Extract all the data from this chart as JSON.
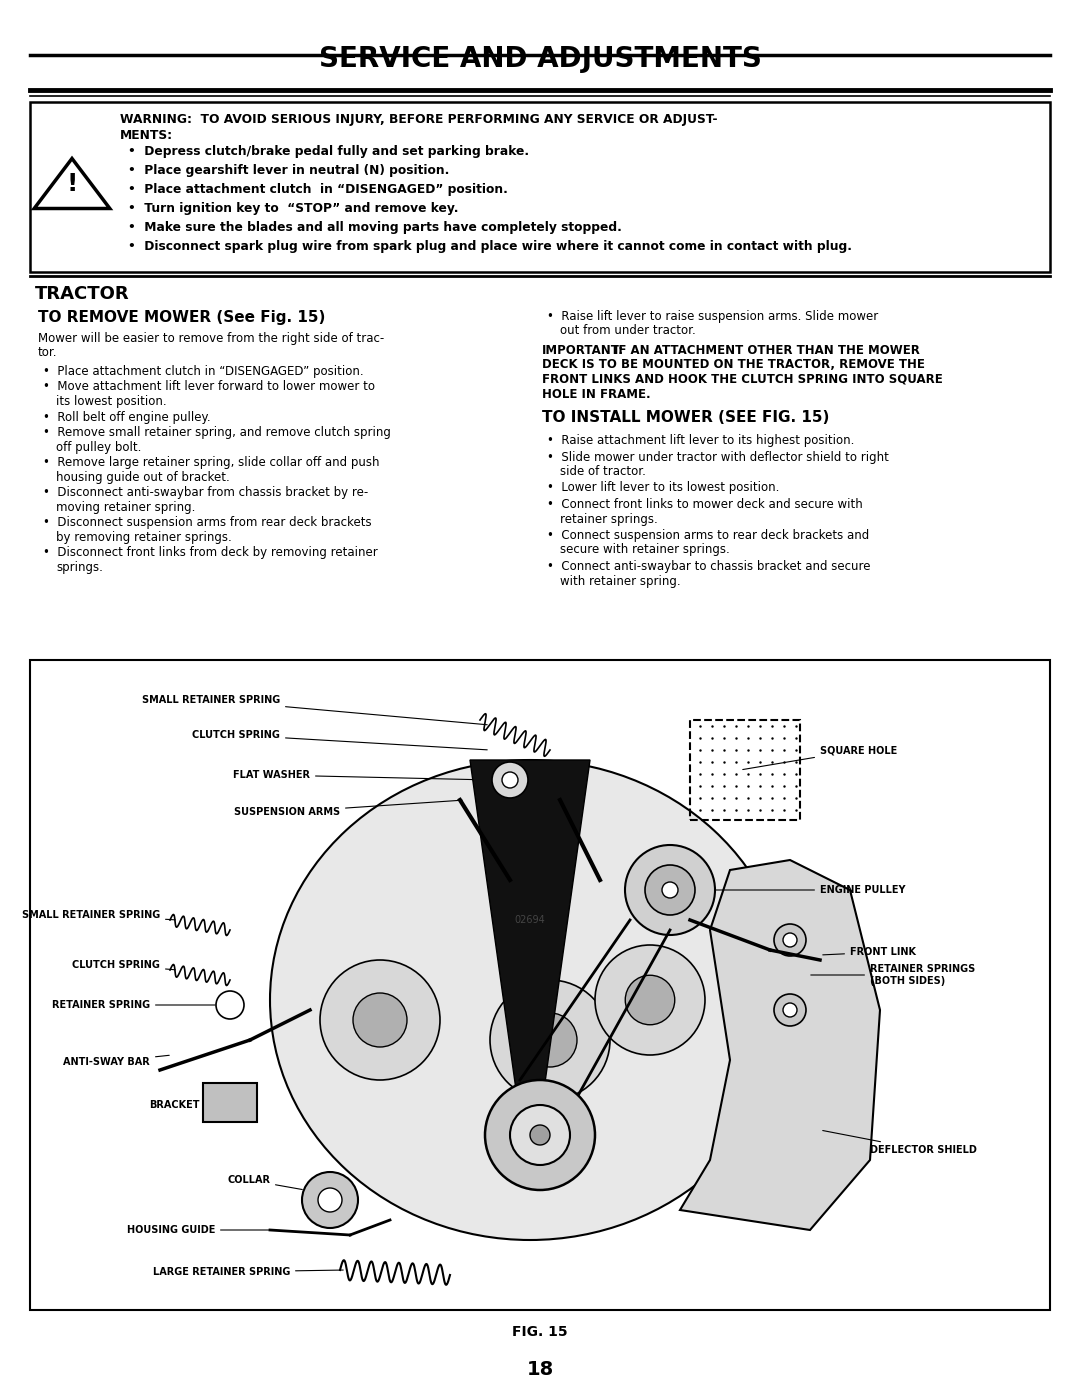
{
  "page_title": "SERVICE AND ADJUSTMENTS",
  "bg_color": "#ffffff",
  "text_color": "#000000",
  "title_fontsize": 20,
  "body_fontsize": 8.5,
  "warning_title_bold": "WARNING:  TO AVOID SERIOUS INJURY, BEFORE PERFORMING ANY SERVICE OR ADJUST-\nMENTS:",
  "warning_bullets": [
    "Depress clutch/brake pedal fully and set parking brake.",
    "Place gearshift lever in neutral (N) position.",
    "Place attachment clutch  in “DISENGAGED” position.",
    "Turn ignition key to  “STOP” and remove key.",
    "Make sure the blades and all moving parts have completely stopped.",
    "Disconnect spark plug wire from spark plug and place wire where it cannot come in contact with plug."
  ],
  "section_title": "TRACTOR",
  "subsection1_title": "TO REMOVE MOWER (See Fig. 15)",
  "subsection1_intro": "Mower will be easier to remove from the right side of trac-\ntor.",
  "remove_bullets": [
    "Place attachment clutch in “DISENGAGED” position.",
    "Move attachment lift lever forward to lower mower to\nits lowest position.",
    "Roll belt off engine pulley.",
    "Remove small retainer spring, and remove clutch spring\noff pulley bolt.",
    "Remove large retainer spring, slide collar off and push\nhousing guide out of bracket.",
    "Disconnect anti-swaybar from chassis bracket by re-\nmoving retainer spring.",
    "Disconnect suspension arms from rear deck brackets\nby removing retainer springs.",
    "Disconnect front links from deck by removing retainer\nsprings."
  ],
  "right_col_first_bullet": "Raise lift lever to raise suspension arms. Slide mower\nout from under tractor.",
  "important_text_bold": "IMPORTANT:",
  "important_text_normal": " IF AN ATTACHMENT OTHER THAN THE MOWER DECK IS TO BE MOUNTED ON THE TRACTOR, REMOVE THE FRONT LINKS AND HOOK THE CLUTCH SPRING INTO SQUARE HOLE IN FRAME.",
  "subsection2_title": "TO INSTALL MOWER (SEE FIG. 15)",
  "install_bullets": [
    "Raise attachment lift lever to its highest position.",
    "Slide mower under tractor with deflector shield to right\nside of tractor.",
    "Lower lift lever to its lowest position.",
    "Connect front links to mower deck and secure with\nretainer springs.",
    "Connect suspension arms to rear deck brackets and\nsecure with retainer springs.",
    "Connect anti-swaybar to chassis bracket and secure\nwith retainer spring."
  ],
  "fig_caption": "FIG. 15",
  "page_number": "18"
}
